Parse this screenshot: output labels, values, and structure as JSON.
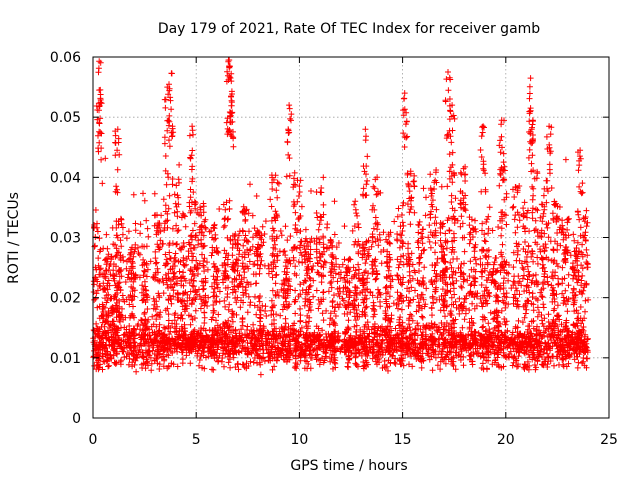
{
  "chart_data": {
    "type": "scatter",
    "title": "Day 179 of 2021, Rate Of TEC Index for receiver gamb",
    "xlabel": "GPS time / hours",
    "ylabel": "ROTI / TECUs",
    "xlim": [
      0,
      25
    ],
    "ylim": [
      0,
      0.06
    ],
    "x_ticks": [
      0,
      5,
      10,
      15,
      20,
      25
    ],
    "x_tick_labels": [
      "0",
      "5",
      "10",
      "15",
      "20",
      "25"
    ],
    "y_ticks": [
      0,
      0.01,
      0.02,
      0.03,
      0.04,
      0.05,
      0.06
    ],
    "y_tick_labels": [
      "0",
      "0.01",
      "0.02",
      "0.03",
      "0.04",
      "0.05",
      "0.06"
    ],
    "grid": true,
    "marker": "+",
    "color": "#ff0000",
    "series": [
      {
        "name": "ROTI",
        "x_range": [
          0,
          24
        ],
        "typical_range": [
          0.005,
          0.03
        ],
        "peaks": [
          {
            "x": 0.3,
            "y": 0.0593
          },
          {
            "x": 0.3,
            "y": 0.0545
          },
          {
            "x": 1.2,
            "y": 0.048
          },
          {
            "x": 3.8,
            "y": 0.0573
          },
          {
            "x": 3.6,
            "y": 0.055
          },
          {
            "x": 4.8,
            "y": 0.0485
          },
          {
            "x": 6.6,
            "y": 0.0595
          },
          {
            "x": 6.6,
            "y": 0.0585
          },
          {
            "x": 6.7,
            "y": 0.056
          },
          {
            "x": 9.5,
            "y": 0.052
          },
          {
            "x": 13.2,
            "y": 0.048
          },
          {
            "x": 15.1,
            "y": 0.054
          },
          {
            "x": 17.2,
            "y": 0.0575
          },
          {
            "x": 17.4,
            "y": 0.052
          },
          {
            "x": 18.9,
            "y": 0.0485
          },
          {
            "x": 19.8,
            "y": 0.0495
          },
          {
            "x": 21.2,
            "y": 0.0565
          },
          {
            "x": 21.2,
            "y": 0.0515
          },
          {
            "x": 22.1,
            "y": 0.0485
          },
          {
            "x": 23.6,
            "y": 0.0445
          }
        ]
      }
    ]
  }
}
